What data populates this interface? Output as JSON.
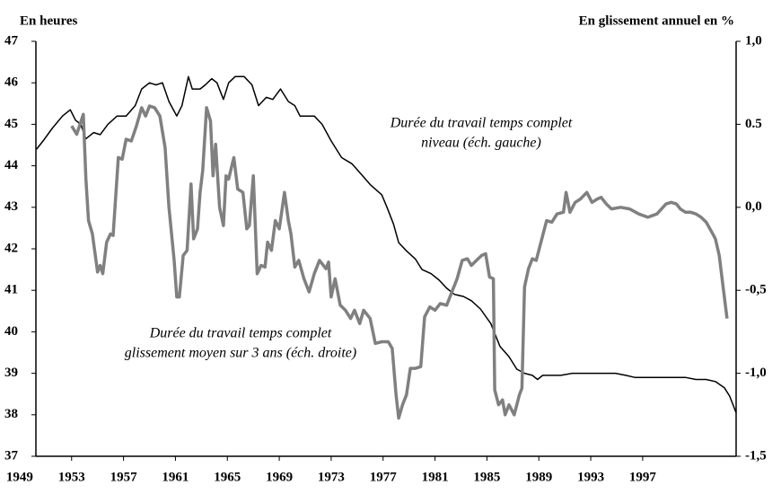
{
  "chart_data": {
    "type": "line",
    "y_label": "En heures",
    "y2_label": "En glissement annuel en %",
    "xlim": [
      1950.25,
      2004.2
    ],
    "xticks": [
      1949,
      1953,
      1957,
      1961,
      1965,
      1969,
      1973,
      1977,
      1981,
      1985,
      1989,
      1993,
      1997
    ],
    "ylim": [
      37,
      47
    ],
    "yticks": [
      37,
      38,
      39,
      40,
      41,
      42,
      43,
      44,
      45,
      46,
      47
    ],
    "y2lim": [
      -1.5,
      1.0
    ],
    "y2ticks": [
      {
        "value": 1.0,
        "label": "1,0"
      },
      {
        "value": 0.5,
        "label": "0.5"
      },
      {
        "value": 0.0,
        "label": "0,0"
      },
      {
        "value": -0.5,
        "label": "-0,5"
      },
      {
        "value": -1.0,
        "label": "-1,0"
      },
      {
        "value": -1.5,
        "label": "-1,5"
      }
    ],
    "grid": false,
    "series": [
      {
        "label_lines": [
          "Durée du travail temps complet",
          "niveau (éch. gauche)"
        ],
        "color": "#000000",
        "axis": "y",
        "x": [
          1950.3,
          1950.8,
          1951.5,
          1952.3,
          1952.9,
          1953.3,
          1953.7,
          1954.1,
          1954.7,
          1955.2,
          1955.8,
          1956.5,
          1957.2,
          1957.9,
          1958.4,
          1959.0,
          1959.5,
          1960.0,
          1960.5,
          1961.1,
          1961.5,
          1962.0,
          1962.3,
          1962.9,
          1963.3,
          1963.8,
          1964.2,
          1964.7,
          1965.1,
          1965.6,
          1966.3,
          1966.9,
          1967.4,
          1968.0,
          1968.5,
          1969.1,
          1969.7,
          1970.2,
          1970.6,
          1971.0,
          1971.7,
          1972.3,
          1973.0,
          1973.8,
          1974.6,
          1975.3,
          1976.0,
          1976.9,
          1977.3,
          1977.8,
          1978.2,
          1978.8,
          1979.5,
          1980.0,
          1980.7,
          1981.3,
          1981.9,
          1982.5,
          1983.2,
          1983.8,
          1984.5,
          1985.3,
          1986.0,
          1986.7,
          1987.3,
          1987.9,
          1988.5,
          1988.9,
          1989.3,
          1989.9,
          1990.7,
          1991.6,
          1993.2,
          1994.9,
          1995.7,
          1996.4,
          1998.1,
          1999.5,
          2000.3,
          2001.1,
          2001.9,
          2002.6,
          2003.3,
          2003.7,
          2004.2
        ],
        "values": [
          44.4,
          44.6,
          44.9,
          45.2,
          45.35,
          45.1,
          45.0,
          44.65,
          44.8,
          44.75,
          45.0,
          45.2,
          45.2,
          45.45,
          45.85,
          46.0,
          45.95,
          46.0,
          45.55,
          45.2,
          45.45,
          46.15,
          45.85,
          45.85,
          45.95,
          46.1,
          46.0,
          45.6,
          46.0,
          46.15,
          46.15,
          45.95,
          45.45,
          45.65,
          45.6,
          45.85,
          45.55,
          45.45,
          45.2,
          45.2,
          45.2,
          45.0,
          44.6,
          44.2,
          44.05,
          43.8,
          43.55,
          43.3,
          43.0,
          42.6,
          42.15,
          41.95,
          41.75,
          41.5,
          41.4,
          41.25,
          41.05,
          40.9,
          40.85,
          40.75,
          40.55,
          40.2,
          39.65,
          39.4,
          39.1,
          39.0,
          38.95,
          38.85,
          38.95,
          38.95,
          38.95,
          39.0,
          39.0,
          39.0,
          38.95,
          38.9,
          38.9,
          38.9,
          38.9,
          38.85,
          38.85,
          38.8,
          38.65,
          38.45,
          38.05
        ]
      },
      {
        "label_lines": [
          "Durée du travail temps complet",
          "glissement moyen sur 3 ans (éch. droite)"
        ],
        "color": "#808080",
        "axis": "y2",
        "x": [
          1953.0,
          1953.4,
          1953.9,
          1954.1,
          1954.3,
          1954.6,
          1955.0,
          1955.2,
          1955.4,
          1955.7,
          1956.0,
          1956.2,
          1956.6,
          1956.9,
          1957.2,
          1957.6,
          1958.0,
          1958.4,
          1958.7,
          1959.0,
          1959.4,
          1959.8,
          1960.2,
          1960.5,
          1960.9,
          1961.1,
          1961.3,
          1961.6,
          1961.9,
          1962.2,
          1962.4,
          1962.7,
          1962.9,
          1963.1,
          1963.4,
          1963.7,
          1963.9,
          1964.1,
          1964.4,
          1964.7,
          1964.9,
          1965.1,
          1965.5,
          1965.8,
          1966.2,
          1966.5,
          1966.7,
          1967.0,
          1967.3,
          1967.6,
          1967.9,
          1968.1,
          1968.4,
          1968.7,
          1969.0,
          1969.4,
          1969.7,
          1969.9,
          1970.2,
          1970.5,
          1970.9,
          1971.3,
          1971.7,
          1972.1,
          1972.6,
          1972.8,
          1973.0,
          1973.3,
          1973.7,
          1974.1,
          1974.5,
          1974.8,
          1975.2,
          1975.5,
          1976.0,
          1976.4,
          1976.9,
          1977.4,
          1977.7,
          1978.0,
          1978.2,
          1978.5,
          1978.8,
          1979.1,
          1979.5,
          1979.9,
          1980.2,
          1980.6,
          1981.0,
          1981.4,
          1981.9,
          1982.3,
          1982.7,
          1983.1,
          1983.5,
          1983.8,
          1984.2,
          1984.6,
          1984.9,
          1985.2,
          1985.5,
          1985.6,
          1985.9,
          1986.2,
          1986.4,
          1986.7,
          1987.1,
          1987.5,
          1987.7,
          1987.9,
          1988.2,
          1988.5,
          1988.8,
          1989.2,
          1989.6,
          1990.0,
          1990.4,
          1990.9,
          1991.1,
          1991.4,
          1991.8,
          1992.2,
          1992.7,
          1993.1,
          1993.5,
          1993.8,
          1994.2,
          1994.6,
          1995.3,
          1996.0,
          1996.7,
          1997.4,
          1998.1,
          1998.8,
          1999.2,
          1999.6,
          1999.9,
          2000.3,
          2000.7,
          2001.1,
          2001.5,
          2001.9,
          2002.4,
          2002.6,
          2002.9,
          2003.2,
          2003.5
        ],
        "values": [
          0.49,
          0.44,
          0.56,
          0.17,
          -0.08,
          -0.16,
          -0.39,
          -0.35,
          -0.4,
          -0.21,
          -0.16,
          -0.17,
          0.3,
          0.29,
          0.41,
          0.4,
          0.49,
          0.6,
          0.55,
          0.61,
          0.6,
          0.55,
          0.36,
          0.0,
          -0.32,
          -0.54,
          -0.54,
          -0.29,
          -0.26,
          0.14,
          -0.19,
          -0.13,
          0.09,
          0.22,
          0.6,
          0.52,
          0.19,
          0.38,
          0.0,
          -0.11,
          0.19,
          0.17,
          0.3,
          0.11,
          0.09,
          -0.13,
          -0.11,
          0.19,
          -0.4,
          -0.35,
          -0.36,
          -0.21,
          -0.26,
          -0.08,
          -0.13,
          0.09,
          -0.08,
          -0.16,
          -0.36,
          -0.32,
          -0.43,
          -0.51,
          -0.4,
          -0.32,
          -0.37,
          -0.33,
          -0.54,
          -0.43,
          -0.59,
          -0.62,
          -0.67,
          -0.62,
          -0.7,
          -0.62,
          -0.67,
          -0.82,
          -0.81,
          -0.81,
          -0.85,
          -1.13,
          -1.27,
          -1.19,
          -1.13,
          -0.97,
          -0.97,
          -0.96,
          -0.66,
          -0.6,
          -0.62,
          -0.58,
          -0.59,
          -0.51,
          -0.43,
          -0.32,
          -0.31,
          -0.35,
          -0.32,
          -0.29,
          -0.28,
          -0.42,
          -0.43,
          -1.1,
          -1.19,
          -1.16,
          -1.25,
          -1.19,
          -1.25,
          -1.13,
          -1.09,
          -0.48,
          -0.37,
          -0.31,
          -0.32,
          -0.2,
          -0.08,
          -0.09,
          -0.04,
          -0.03,
          0.09,
          -0.03,
          0.03,
          0.05,
          0.09,
          0.03,
          0.05,
          0.06,
          0.02,
          -0.01,
          0.0,
          -0.01,
          -0.04,
          -0.06,
          -0.04,
          0.02,
          0.03,
          0.02,
          -0.01,
          -0.03,
          -0.03,
          -0.04,
          -0.06,
          -0.09,
          -0.16,
          -0.19,
          -0.29,
          -0.48,
          -0.67
        ]
      }
    ]
  }
}
